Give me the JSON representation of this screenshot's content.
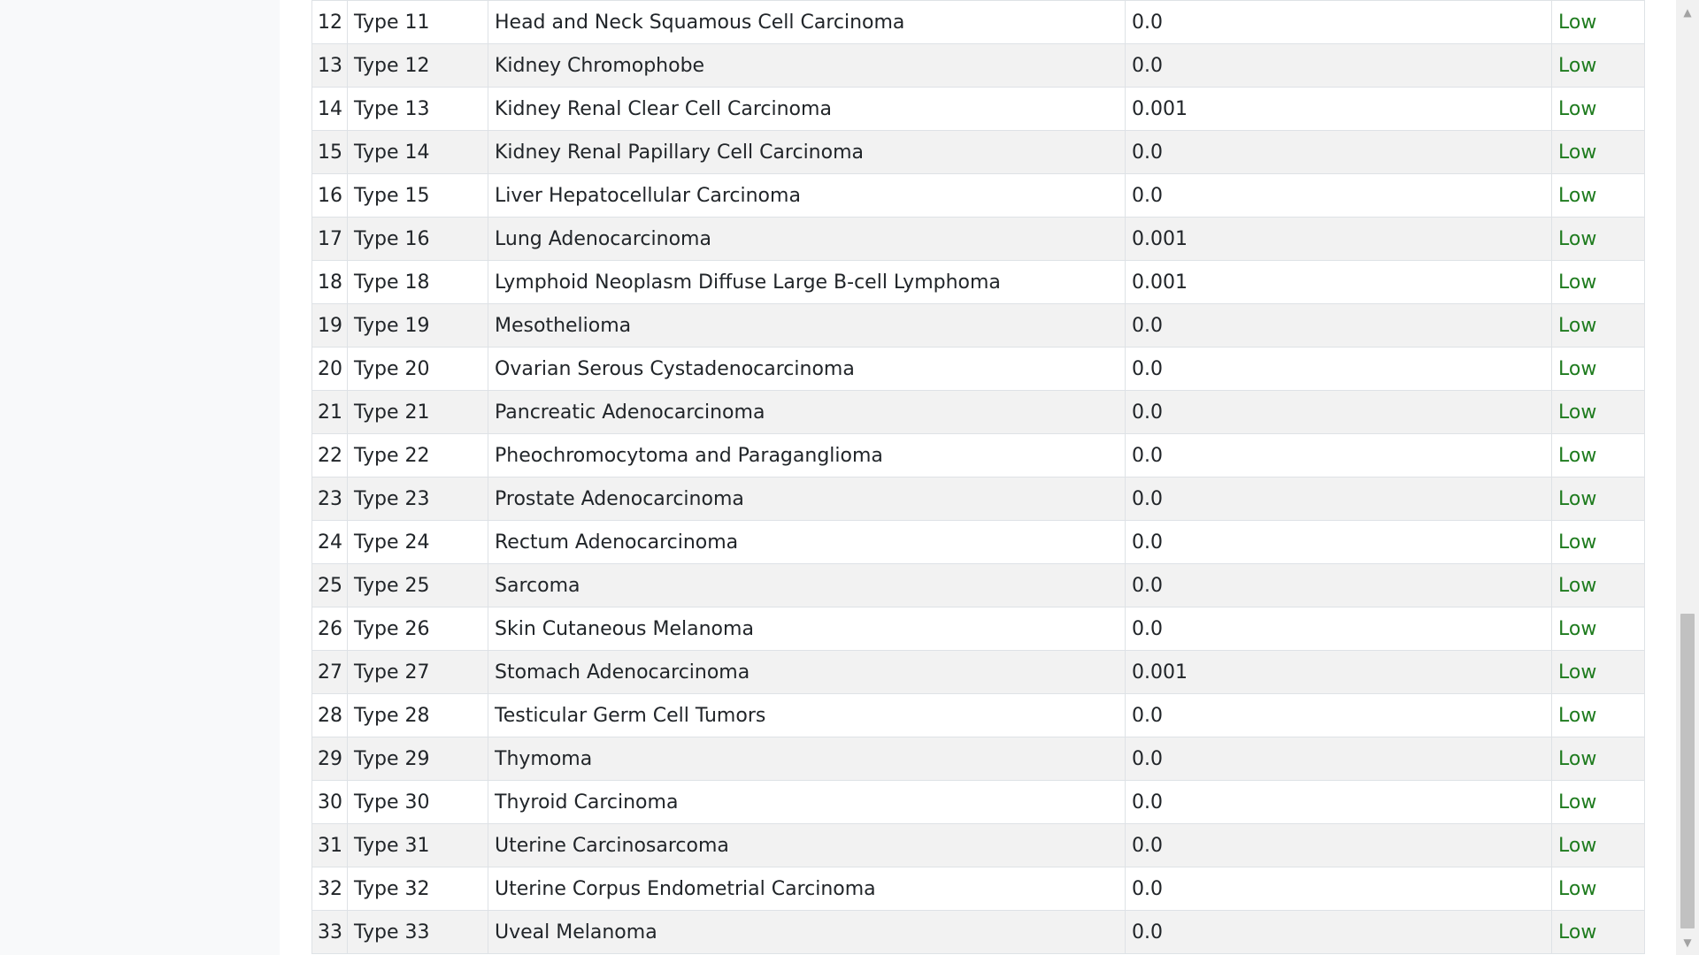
{
  "table": {
    "rows": [
      {
        "index": "12",
        "type": "Type 11",
        "name": "Head and Neck Squamous Cell Carcinoma",
        "value": "0.0",
        "level": "Low"
      },
      {
        "index": "13",
        "type": "Type 12",
        "name": "Kidney Chromophobe",
        "value": "0.0",
        "level": "Low"
      },
      {
        "index": "14",
        "type": "Type 13",
        "name": "Kidney Renal Clear Cell Carcinoma",
        "value": "0.001",
        "level": "Low"
      },
      {
        "index": "15",
        "type": "Type 14",
        "name": "Kidney Renal Papillary Cell Carcinoma",
        "value": "0.0",
        "level": "Low"
      },
      {
        "index": "16",
        "type": "Type 15",
        "name": "Liver Hepatocellular Carcinoma",
        "value": "0.0",
        "level": "Low"
      },
      {
        "index": "17",
        "type": "Type 16",
        "name": "Lung Adenocarcinoma",
        "value": "0.001",
        "level": "Low"
      },
      {
        "index": "18",
        "type": "Type 18",
        "name": "Lymphoid Neoplasm Diffuse Large B-cell Lymphoma",
        "value": "0.001",
        "level": "Low"
      },
      {
        "index": "19",
        "type": "Type 19",
        "name": "Mesothelioma",
        "value": "0.0",
        "level": "Low"
      },
      {
        "index": "20",
        "type": "Type 20",
        "name": "Ovarian Serous Cystadenocarcinoma",
        "value": "0.0",
        "level": "Low"
      },
      {
        "index": "21",
        "type": "Type 21",
        "name": "Pancreatic Adenocarcinoma",
        "value": "0.0",
        "level": "Low"
      },
      {
        "index": "22",
        "type": "Type 22",
        "name": "Pheochromocytoma and Paraganglioma",
        "value": "0.0",
        "level": "Low"
      },
      {
        "index": "23",
        "type": "Type 23",
        "name": "Prostate Adenocarcinoma",
        "value": "0.0",
        "level": "Low"
      },
      {
        "index": "24",
        "type": "Type 24",
        "name": "Rectum Adenocarcinoma",
        "value": "0.0",
        "level": "Low"
      },
      {
        "index": "25",
        "type": "Type 25",
        "name": "Sarcoma",
        "value": "0.0",
        "level": "Low"
      },
      {
        "index": "26",
        "type": "Type 26",
        "name": "Skin Cutaneous Melanoma",
        "value": "0.0",
        "level": "Low"
      },
      {
        "index": "27",
        "type": "Type 27",
        "name": "Stomach Adenocarcinoma",
        "value": "0.001",
        "level": "Low"
      },
      {
        "index": "28",
        "type": "Type 28",
        "name": "Testicular Germ Cell Tumors",
        "value": "0.0",
        "level": "Low"
      },
      {
        "index": "29",
        "type": "Type 29",
        "name": "Thymoma",
        "value": "0.0",
        "level": "Low"
      },
      {
        "index": "30",
        "type": "Type 30",
        "name": "Thyroid Carcinoma",
        "value": "0.0",
        "level": "Low"
      },
      {
        "index": "31",
        "type": "Type 31",
        "name": "Uterine Carcinosarcoma",
        "value": "0.0",
        "level": "Low"
      },
      {
        "index": "32",
        "type": "Type 32",
        "name": "Uterine Corpus Endometrial Carcinoma",
        "value": "0.0",
        "level": "Low"
      },
      {
        "index": "33",
        "type": "Type 33",
        "name": "Uveal Melanoma",
        "value": "0.0",
        "level": "Low"
      }
    ]
  },
  "colors": {
    "level_low": "#1e7b1e",
    "row_stripe": "#f2f2f2",
    "left_panel": "#f8f9fa"
  },
  "scrollbar": {
    "up_icon": "triangle-up",
    "down_icon": "triangle-down",
    "position_fraction": 0.64
  }
}
